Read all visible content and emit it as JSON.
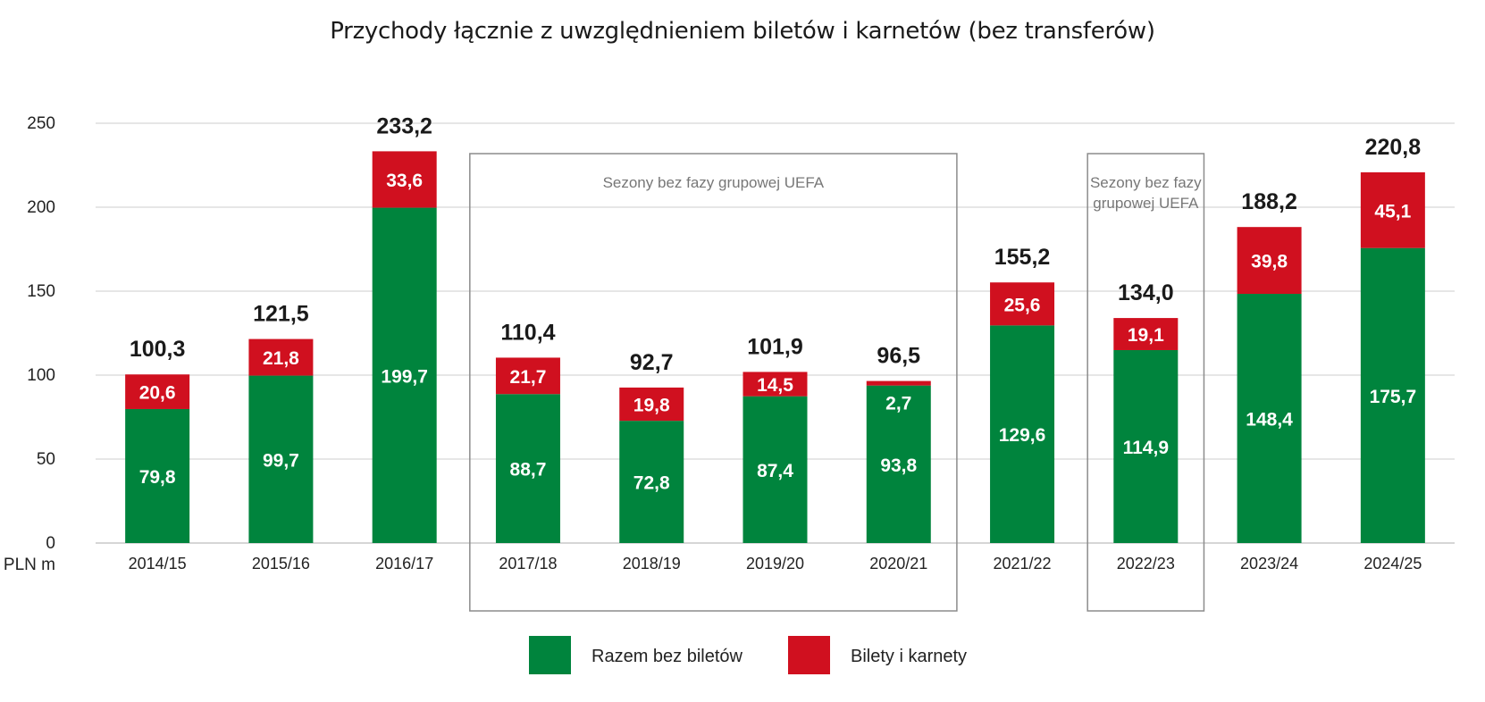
{
  "chart_data": {
    "type": "bar",
    "stacked": true,
    "title": "Przychody łącznie z uwzględnieniem biletów i karnetów (bez transferów)",
    "ylabel": "PLN m",
    "ylim": [
      0,
      250
    ],
    "yticks": [
      0,
      50,
      100,
      150,
      200,
      250
    ],
    "grid": true,
    "legend_position": "bottom",
    "categories": [
      "2014/15",
      "2015/16",
      "2016/17",
      "2017/18",
      "2018/19",
      "2019/20",
      "2020/21",
      "2021/22",
      "2022/23",
      "2023/24",
      "2024/25"
    ],
    "series": [
      {
        "name": "Razem bez biletów",
        "color": "#00843d",
        "values": [
          79.8,
          99.7,
          199.7,
          88.7,
          72.8,
          87.4,
          93.8,
          129.6,
          114.9,
          148.4,
          175.7
        ],
        "labels": [
          "79,8",
          "99,7",
          "199,7",
          "88,7",
          "72,8",
          "87,4",
          "93,8",
          "129,6",
          "114,9",
          "148,4",
          "175,7"
        ]
      },
      {
        "name": "Bilety i karnety",
        "color": "#d0101f",
        "values": [
          20.6,
          21.8,
          33.6,
          21.7,
          19.8,
          14.5,
          2.7,
          25.6,
          19.1,
          39.8,
          45.1
        ],
        "labels": [
          "20,6",
          "21,8",
          "33,6",
          "21,7",
          "19,8",
          "14,5",
          "2,7",
          "25,6",
          "19,1",
          "39,8",
          "45,1"
        ]
      }
    ],
    "totals": [
      100.3,
      121.5,
      233.2,
      110.4,
      92.7,
      101.9,
      96.5,
      155.2,
      134.0,
      188.2,
      220.8
    ],
    "total_labels": [
      "100,3",
      "121,5",
      "233,2",
      "110,4",
      "92,7",
      "101,9",
      "96,5",
      "155,2",
      "134,0",
      "188,2",
      "220,8"
    ],
    "annotations": [
      {
        "from": "2017/18",
        "to": "2020/21",
        "lines": [
          "Sezony bez fazy grupowej UEFA"
        ]
      },
      {
        "from": "2022/23",
        "to": "2022/23",
        "lines": [
          "Sezony bez fazy",
          "grupowej UEFA"
        ]
      }
    ]
  }
}
